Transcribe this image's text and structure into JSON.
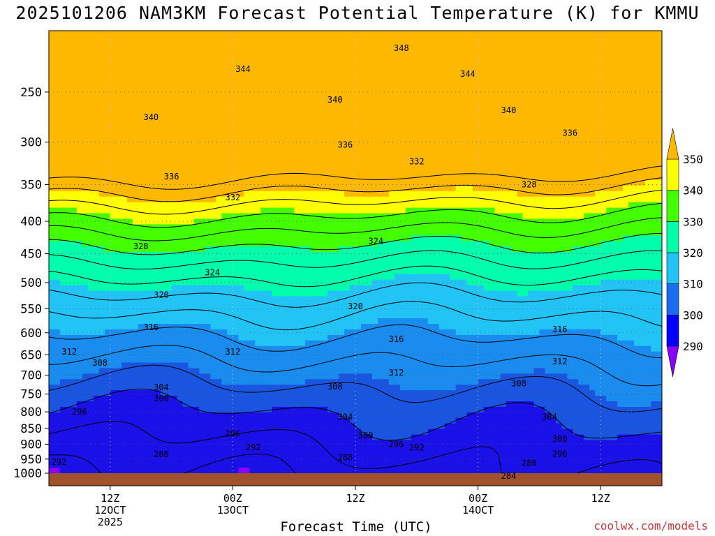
{
  "title": "2025101206 NAM3KM Forecast Potential Temperature (K) for KMMU",
  "credit": "coolwx.com/models",
  "chart_data": {
    "type": "contour",
    "title": "2025101206 NAM3KM Forecast Potential Temperature (K) for KMMU",
    "xlabel": "Forecast Time (UTC)",
    "ylabel": "",
    "x_ticks": [
      {
        "label": [
          "12Z",
          "12OCT",
          "2025"
        ],
        "hour": 6
      },
      {
        "label": [
          "00Z",
          "13OCT"
        ],
        "hour": 18
      },
      {
        "label": [
          "12Z"
        ],
        "hour": 30
      },
      {
        "label": [
          "00Z",
          "14OCT"
        ],
        "hour": 42
      },
      {
        "label": [
          "12Z"
        ],
        "hour": 54
      }
    ],
    "x_range_hours": [
      0,
      60
    ],
    "y_ticks_hpa": [
      "250",
      "300",
      "350",
      "400",
      "450",
      "500",
      "550",
      "600",
      "650",
      "700",
      "750",
      "800",
      "850",
      "900",
      "950",
      "1000"
    ],
    "y_range_hpa": [
      200,
      1020
    ],
    "y_scale": "log-pressure (inverted)",
    "grid": true,
    "colorbar": {
      "levels": [
        "290",
        "300",
        "310",
        "320",
        "330",
        "340",
        "350"
      ],
      "colors": [
        "#8800ff",
        "#1a10e8",
        "#1a55e0",
        "#1a8cf0",
        "#22c4f5",
        "#00ffaa",
        "#44ff00",
        "#ffff00",
        "#ffb800"
      ]
    },
    "contour_interval_K": 4,
    "contour_labels": [
      {
        "value": "348",
        "hour": 34.5,
        "hpa": 213
      },
      {
        "value": "344",
        "hour": 19,
        "hpa": 230
      },
      {
        "value": "344",
        "hour": 41,
        "hpa": 234
      },
      {
        "value": "340",
        "hour": 10,
        "hpa": 274
      },
      {
        "value": "340",
        "hour": 28,
        "hpa": 257
      },
      {
        "value": "340",
        "hour": 45,
        "hpa": 267
      },
      {
        "value": "336",
        "hour": 51,
        "hpa": 290
      },
      {
        "value": "336",
        "hour": 29,
        "hpa": 303
      },
      {
        "value": "336",
        "hour": 12,
        "hpa": 340
      },
      {
        "value": "332",
        "hour": 36,
        "hpa": 322
      },
      {
        "value": "332",
        "hour": 18,
        "hpa": 367
      },
      {
        "value": "328",
        "hour": 47,
        "hpa": 350
      },
      {
        "value": "328",
        "hour": 9,
        "hpa": 438
      },
      {
        "value": "324",
        "hour": 32,
        "hpa": 430
      },
      {
        "value": "324",
        "hour": 16,
        "hpa": 482
      },
      {
        "value": "320",
        "hour": 11,
        "hpa": 523
      },
      {
        "value": "320",
        "hour": 30,
        "hpa": 545
      },
      {
        "value": "316",
        "hour": 10,
        "hpa": 588
      },
      {
        "value": "316",
        "hour": 34,
        "hpa": 614
      },
      {
        "value": "316",
        "hour": 50,
        "hpa": 593
      },
      {
        "value": "312",
        "hour": 2,
        "hpa": 643
      },
      {
        "value": "312",
        "hour": 18,
        "hpa": 643
      },
      {
        "value": "312",
        "hour": 34,
        "hpa": 694
      },
      {
        "value": "312",
        "hour": 50,
        "hpa": 666
      },
      {
        "value": "308",
        "hour": 5,
        "hpa": 670
      },
      {
        "value": "308",
        "hour": 28,
        "hpa": 730
      },
      {
        "value": "308",
        "hour": 46,
        "hpa": 722
      },
      {
        "value": "304",
        "hour": 11,
        "hpa": 732
      },
      {
        "value": "304",
        "hour": 29,
        "hpa": 815
      },
      {
        "value": "304",
        "hour": 49,
        "hpa": 815
      },
      {
        "value": "300",
        "hour": 11,
        "hpa": 762
      },
      {
        "value": "300",
        "hour": 31,
        "hpa": 872
      },
      {
        "value": "300",
        "hour": 50,
        "hpa": 883
      },
      {
        "value": "296",
        "hour": 3,
        "hpa": 800
      },
      {
        "value": "296",
        "hour": 18,
        "hpa": 866
      },
      {
        "value": "296",
        "hour": 34,
        "hpa": 900
      },
      {
        "value": "296",
        "hour": 50,
        "hpa": 932
      },
      {
        "value": "292",
        "hour": 1,
        "hpa": 960
      },
      {
        "value": "292",
        "hour": 20,
        "hpa": 910
      },
      {
        "value": "292",
        "hour": 36,
        "hpa": 912
      },
      {
        "value": "288",
        "hour": 11,
        "hpa": 934
      },
      {
        "value": "288",
        "hour": 29,
        "hpa": 944
      },
      {
        "value": "288",
        "hour": 47,
        "hpa": 964
      },
      {
        "value": "284",
        "hour": 45,
        "hpa": 1010
      }
    ]
  }
}
